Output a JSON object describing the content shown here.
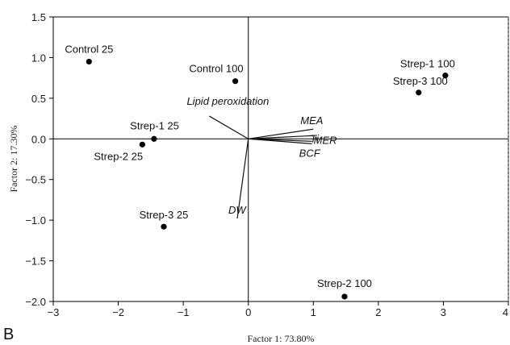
{
  "chart_data": {
    "type": "scatter",
    "panel_label": "B",
    "xlabel": "Factor 1: 73.80%",
    "ylabel": "Factor 2: 17.30%",
    "xlim": [
      -3,
      4
    ],
    "ylim": [
      -2,
      1.5
    ],
    "x_ticks": [
      -3,
      -2,
      -1,
      0,
      1,
      2,
      3,
      4
    ],
    "x_tick_labels": [
      "−3",
      "−2",
      "−1",
      "0",
      "1",
      "2",
      "3",
      "4"
    ],
    "y_ticks": [
      1.5,
      1.0,
      0.5,
      0.0,
      -0.5,
      -1.0,
      -1.5,
      -2.0
    ],
    "y_tick_labels": [
      "1.5",
      "1.0",
      "0.5",
      "0.0",
      "−0.5",
      "−1.0",
      "−1.5",
      "−2.0"
    ],
    "points": [
      {
        "label": "Control 25",
        "x": -2.45,
        "y": 0.95,
        "anchor": "end"
      },
      {
        "label": "Control 100",
        "x": -0.2,
        "y": 0.71,
        "anchor": "end"
      },
      {
        "label": "Strep-1 100",
        "x": 3.03,
        "y": 0.78,
        "anchor": "end"
      },
      {
        "label": "Strep-3 100",
        "x": 2.62,
        "y": 0.57,
        "anchor": "end"
      },
      {
        "label": "Strep-1 25",
        "x": -1.45,
        "y": 0.0,
        "anchor": "end"
      },
      {
        "label": "Strep-2 25",
        "x": -1.63,
        "y": -0.07,
        "anchor": "start"
      },
      {
        "label": "Strep-3 25",
        "x": -1.3,
        "y": -1.08,
        "anchor": "middle"
      },
      {
        "label": "Strep-2 100",
        "x": 1.48,
        "y": -1.94,
        "anchor": "middle"
      }
    ],
    "vectors": [
      {
        "label": "Lipid peroxidation",
        "x": -0.6,
        "y": 0.28
      },
      {
        "label": "MEA",
        "x": 1.0,
        "y": 0.12
      },
      {
        "label": "Ti",
        "x": 1.0,
        "y": 0.04
      },
      {
        "label": "MER",
        "x": 0.98,
        "y": -0.03
      },
      {
        "label": "BCF",
        "x": 0.98,
        "y": -0.06
      },
      {
        "label": "DW",
        "x": -0.17,
        "y": -0.98
      }
    ]
  }
}
